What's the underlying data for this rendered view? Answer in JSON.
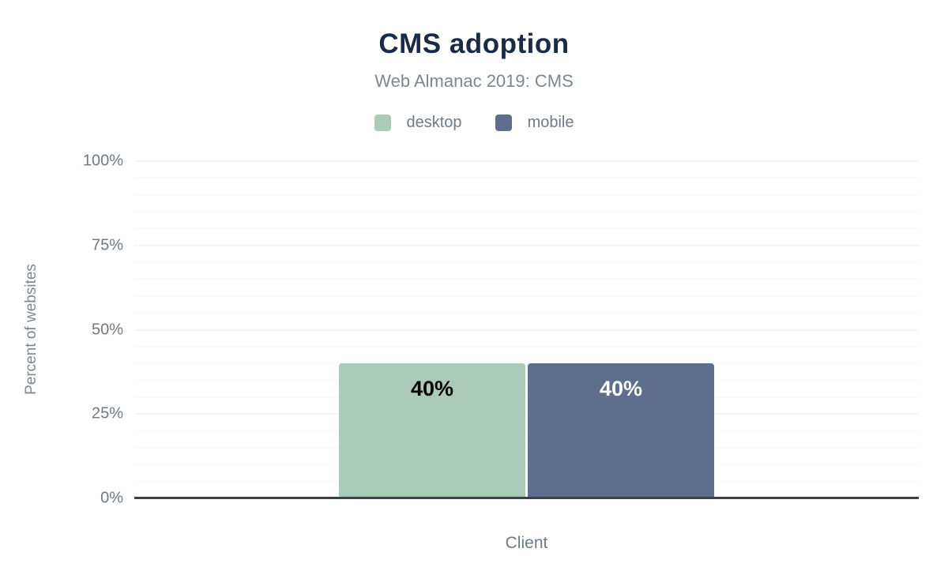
{
  "figure": {
    "title": "CMS adoption",
    "subtitle": "Web Almanac 2019: CMS"
  },
  "colors": {
    "title": "#1a2b49",
    "subtitle": "#7c8790",
    "axis_text": "#6e7a85",
    "axis_line": "#3b4249",
    "grid_minor": "#f6f6f6",
    "grid_major": "#ececec",
    "desktop_bar": "#a9cbb7",
    "mobile_bar": "#5d6f8d"
  },
  "chart_data": {
    "type": "bar",
    "title": "CMS adoption",
    "subtitle": "Web Almanac 2019: CMS",
    "xlabel": "Client",
    "ylabel": "Percent of websites",
    "categories": [
      "Client"
    ],
    "series": [
      {
        "name": "desktop",
        "values": [
          40
        ],
        "color": "#a9cbb7",
        "value_label_color": "#000000"
      },
      {
        "name": "mobile",
        "values": [
          40
        ],
        "color": "#5d6f8d",
        "value_label_color": "#ffffff"
      }
    ],
    "value_labels": [
      "40%",
      "40%"
    ],
    "ylim": [
      0,
      100
    ],
    "yticks": [
      {
        "value": 0,
        "label": "0%"
      },
      {
        "value": 25,
        "label": "25%"
      },
      {
        "value": 50,
        "label": "50%"
      },
      {
        "value": 75,
        "label": "75%"
      },
      {
        "value": 100,
        "label": "100%"
      }
    ],
    "grid": {
      "minor_step": 5,
      "major_step": 25
    },
    "legend_position": "top"
  }
}
